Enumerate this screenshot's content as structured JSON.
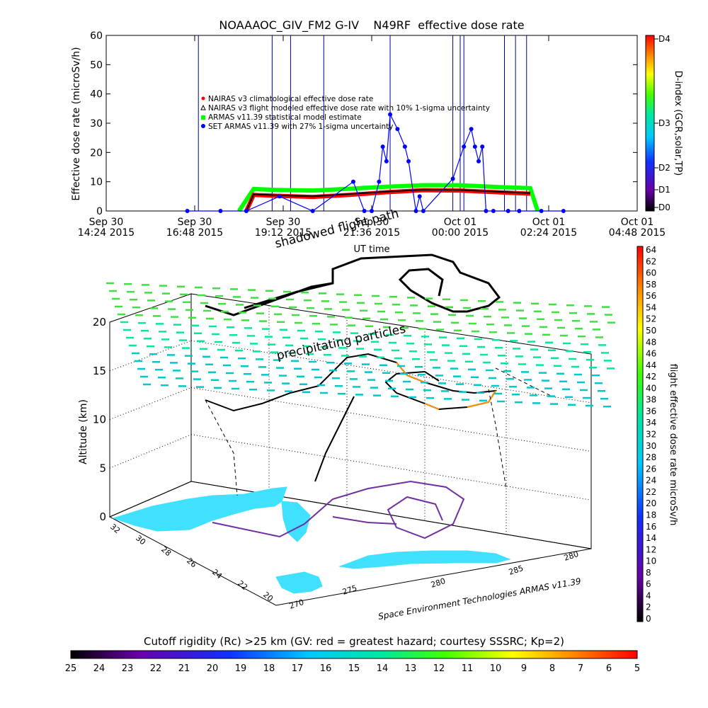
{
  "colors": {
    "nairas_climatological": "#ff0000",
    "nairas_flight": "#000000",
    "armas_model": "#00ff00",
    "set_armas": "#0000ff",
    "land": "#40e0ff",
    "grid": "#000000"
  },
  "chart_data": [
    {
      "type": "line",
      "title": "NOAAAOC_GIV_FM2 G-IV    N49RF  effective dose rate",
      "xlabel": "UT time",
      "ylabel": "Effective dose rate (microSv/h)",
      "ylim": [
        0,
        60
      ],
      "y_ticks": [
        0,
        10,
        20,
        30,
        40,
        50,
        60
      ],
      "x_ticks": [
        {
          "l1": "Sep 30",
          "l2": "14:24 2015"
        },
        {
          "l1": "Sep 30",
          "l2": "16:48 2015"
        },
        {
          "l1": "Sep 30",
          "l2": "19:12 2015"
        },
        {
          "l1": "Sep 30",
          "l2": "21:36 2015"
        },
        {
          "l1": "Oct 01",
          "l2": "00:00 2015"
        },
        {
          "l1": "Oct 01",
          "l2": "02:24 2015"
        },
        {
          "l1": "Oct 01",
          "l2": "04:48 2015"
        }
      ],
      "x_range_hours": [
        14.4,
        28.8
      ],
      "legend": {
        "position": "top-left",
        "entries": [
          "NAIRAS v3 climatological effective dose rate",
          "NAIRAS v3 flight modeled effective dose rate with 10% 1-sigma uncertainty",
          "ARMAS v11.39 statistical model estimate",
          "SET ARMAS v11.39 with 27% 1-sigma uncertainty"
        ]
      },
      "series": [
        {
          "name": "NAIRAS v3 climatological effective dose rate",
          "x": [
            18.2,
            18.4,
            19.0,
            20.0,
            21.0,
            22.0,
            23.0,
            24.0,
            25.0,
            25.9
          ],
          "y": [
            0,
            5.5,
            5.2,
            4.8,
            5.5,
            6.4,
            7.1,
            7.0,
            6.4,
            5.9
          ]
        },
        {
          "name": "NAIRAS v3 flight modeled effective dose rate with 10% 1-sigma uncertainty",
          "x": [
            18.2,
            18.4,
            19.0,
            20.0,
            21.0,
            22.0,
            23.0,
            24.0,
            25.0,
            25.9
          ],
          "y": [
            0,
            5.7,
            5.4,
            5.0,
            5.8,
            6.6,
            7.3,
            7.2,
            6.6,
            6.1
          ]
        },
        {
          "name": "ARMAS v11.39 statistical model estimate",
          "x": [
            18.0,
            18.4,
            19.0,
            20.0,
            21.0,
            22.0,
            23.0,
            24.0,
            25.0,
            25.9,
            26.1
          ],
          "y": [
            0,
            7.5,
            7.2,
            7.0,
            7.6,
            8.3,
            8.8,
            8.8,
            8.2,
            7.8,
            0
          ]
        },
        {
          "name": "SET ARMAS v11.39 with 27% 1-sigma uncertainty",
          "x": [
            16.6,
            17.5,
            18.2,
            19.1,
            20.0,
            21.1,
            21.4,
            21.6,
            21.8,
            21.9,
            22.0,
            22.1,
            22.3,
            22.5,
            22.6,
            22.8,
            22.9,
            23.0,
            23.8,
            24.1,
            24.3,
            24.4,
            24.5,
            24.6,
            24.7,
            24.9,
            25.3,
            25.6,
            26.2,
            26.8
          ],
          "y": [
            0,
            0,
            0,
            5,
            0,
            10,
            0,
            0,
            10,
            22,
            17,
            33,
            28,
            22,
            17,
            0,
            5,
            0,
            11,
            22,
            28,
            22,
            17,
            22,
            0,
            0,
            0,
            0,
            0,
            0
          ]
        }
      ],
      "right_axis": {
        "label": "D-index (GCR,solar,TP)",
        "ticks": [
          "D0",
          "D1",
          "D2",
          "D3",
          "D4"
        ]
      }
    },
    {
      "type": "scatter",
      "zlabel": "Altitude (km)",
      "zlim": [
        0,
        20
      ],
      "z_ticks": [
        0,
        5,
        10,
        15,
        20
      ],
      "lat_ticks": [
        "32",
        "30",
        "28",
        "26",
        "24",
        "22",
        "20"
      ],
      "lon_ticks": [
        "270",
        "275",
        "280",
        "285",
        "280"
      ],
      "annotations": [
        "shadowed flight path",
        "precipitating particles"
      ],
      "credit": "Space Environment Technologies ARMAS v11.39",
      "colorbar_right": {
        "label": "flight effective dose rate microSv/h",
        "ticks": [
          0,
          2,
          4,
          6,
          8,
          10,
          12,
          14,
          16,
          18,
          20,
          22,
          24,
          26,
          28,
          30,
          32,
          34,
          36,
          38,
          40,
          42,
          44,
          46,
          48,
          50,
          52,
          54,
          56,
          58,
          60,
          62,
          64
        ]
      },
      "colorbar_bottom": {
        "label": "Cutoff rigidity (Rc) >25 km (GV: red = greatest hazard; courtesy SSSRC; Kp=2)",
        "ticks": [
          25,
          24,
          23,
          22,
          21,
          20,
          19,
          18,
          17,
          16,
          15,
          14,
          13,
          12,
          11,
          10,
          9,
          8,
          7,
          6,
          5
        ]
      }
    }
  ]
}
